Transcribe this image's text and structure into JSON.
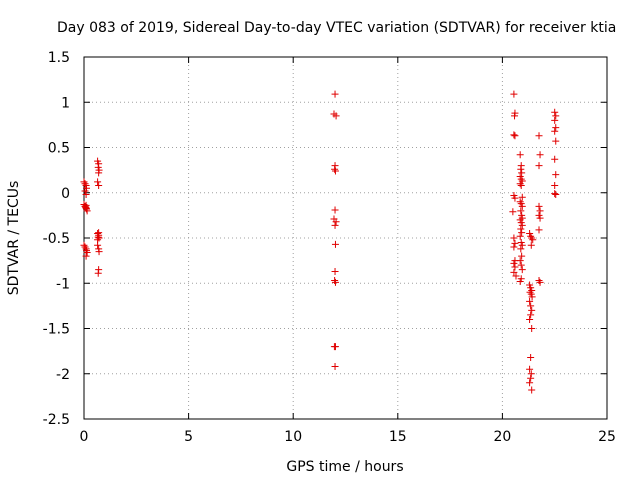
{
  "chart_data": {
    "type": "scatter",
    "title": "Day 083 of 2019, Sidereal Day-to-day VTEC variation (SDTVAR) for receiver ktia",
    "xlabel": "GPS time / hours",
    "ylabel": "SDTVAR / TECUs",
    "xlim": [
      0,
      25
    ],
    "ylim": [
      -2.5,
      1.5
    ],
    "xticks": [
      0,
      5,
      10,
      15,
      20,
      25
    ],
    "xtick_labels": [
      "0",
      "5",
      "10",
      "15",
      "20",
      "25"
    ],
    "yticks": [
      -2.5,
      -2,
      -1.5,
      -1,
      -0.5,
      0,
      0.5,
      1,
      1.5
    ],
    "ytick_labels": [
      "-2.5",
      "-2",
      "-1.5",
      "-1",
      "-0.5",
      "0",
      "0.5",
      "1",
      "1.5"
    ],
    "grid": true,
    "marker": "+",
    "color": "#e00000",
    "series": [
      {
        "name": "SDTVAR",
        "points": [
          [
            0.0,
            0.12
          ],
          [
            0.05,
            0.1
          ],
          [
            0.1,
            0.08
          ],
          [
            0.12,
            0.05
          ],
          [
            0.05,
            0.02
          ],
          [
            0.1,
            -0.02
          ],
          [
            0.0,
            -0.13
          ],
          [
            0.05,
            -0.15
          ],
          [
            0.08,
            -0.16
          ],
          [
            0.1,
            -0.17
          ],
          [
            0.12,
            -0.18
          ],
          [
            0.15,
            -0.2
          ],
          [
            0.1,
            -0.14
          ],
          [
            0.0,
            -0.58
          ],
          [
            0.05,
            -0.6
          ],
          [
            0.1,
            -0.62
          ],
          [
            0.12,
            -0.64
          ],
          [
            0.15,
            -0.66
          ],
          [
            0.1,
            -0.7
          ],
          [
            0.65,
            0.35
          ],
          [
            0.7,
            0.32
          ],
          [
            0.68,
            0.28
          ],
          [
            0.72,
            0.25
          ],
          [
            0.7,
            0.22
          ],
          [
            0.65,
            0.12
          ],
          [
            0.7,
            0.08
          ],
          [
            0.65,
            -0.45
          ],
          [
            0.7,
            -0.47
          ],
          [
            0.68,
            -0.49
          ],
          [
            0.72,
            -0.5
          ],
          [
            0.65,
            -0.52
          ],
          [
            0.7,
            -0.44
          ],
          [
            0.65,
            -0.58
          ],
          [
            0.7,
            -0.62
          ],
          [
            0.72,
            -0.65
          ],
          [
            0.7,
            -0.85
          ],
          [
            0.68,
            -0.89
          ],
          [
            12.0,
            1.09
          ],
          [
            11.95,
            0.87
          ],
          [
            12.05,
            0.85
          ],
          [
            12.0,
            0.3
          ],
          [
            11.98,
            0.26
          ],
          [
            12.02,
            0.24
          ],
          [
            12.0,
            -0.19
          ],
          [
            11.95,
            -0.29
          ],
          [
            12.05,
            -0.32
          ],
          [
            12.0,
            -0.36
          ],
          [
            12.02,
            -0.57
          ],
          [
            12.0,
            -0.87
          ],
          [
            11.98,
            -0.97
          ],
          [
            12.02,
            -0.99
          ],
          [
            11.97,
            -1.7
          ],
          [
            12.02,
            -1.7
          ],
          [
            12.0,
            -1.92
          ],
          [
            20.55,
            1.09
          ],
          [
            20.6,
            0.88
          ],
          [
            20.58,
            0.85
          ],
          [
            20.55,
            0.64
          ],
          [
            20.6,
            0.63
          ],
          [
            20.55,
            -0.03
          ],
          [
            20.6,
            -0.06
          ],
          [
            20.5,
            -0.21
          ],
          [
            20.55,
            -0.5
          ],
          [
            20.6,
            -0.56
          ],
          [
            20.55,
            -0.6
          ],
          [
            20.6,
            -0.75
          ],
          [
            20.55,
            -0.78
          ],
          [
            20.6,
            -0.82
          ],
          [
            20.55,
            -0.88
          ],
          [
            20.65,
            -0.92
          ],
          [
            20.85,
            0.42
          ],
          [
            20.9,
            0.3
          ],
          [
            20.88,
            0.26
          ],
          [
            20.92,
            0.22
          ],
          [
            20.85,
            0.18
          ],
          [
            20.9,
            0.15
          ],
          [
            20.95,
            0.13
          ],
          [
            20.85,
            0.1
          ],
          [
            20.9,
            0.08
          ],
          [
            20.95,
            -0.05
          ],
          [
            20.85,
            -0.1
          ],
          [
            20.9,
            -0.12
          ],
          [
            20.95,
            -0.15
          ],
          [
            20.88,
            -0.2
          ],
          [
            20.92,
            -0.25
          ],
          [
            20.95,
            -0.28
          ],
          [
            20.85,
            -0.3
          ],
          [
            20.9,
            -0.33
          ],
          [
            20.95,
            -0.36
          ],
          [
            20.88,
            -0.4
          ],
          [
            20.92,
            -0.44
          ],
          [
            20.85,
            -0.48
          ],
          [
            20.9,
            -0.55
          ],
          [
            20.95,
            -0.58
          ],
          [
            20.88,
            -0.62
          ],
          [
            20.92,
            -0.7
          ],
          [
            20.85,
            -0.75
          ],
          [
            20.9,
            -0.8
          ],
          [
            20.95,
            -0.85
          ],
          [
            20.9,
            -0.95
          ],
          [
            20.85,
            -0.98
          ],
          [
            21.3,
            -0.45
          ],
          [
            21.35,
            -0.48
          ],
          [
            21.4,
            -0.5
          ],
          [
            21.45,
            -0.52
          ],
          [
            21.38,
            -0.58
          ],
          [
            21.3,
            -1.02
          ],
          [
            21.35,
            -1.05
          ],
          [
            21.4,
            -1.08
          ],
          [
            21.32,
            -1.1
          ],
          [
            21.38,
            -1.12
          ],
          [
            21.42,
            -1.15
          ],
          [
            21.3,
            -1.2
          ],
          [
            21.35,
            -1.25
          ],
          [
            21.4,
            -1.3
          ],
          [
            21.35,
            -1.35
          ],
          [
            21.3,
            -1.4
          ],
          [
            21.4,
            -1.5
          ],
          [
            21.35,
            -1.82
          ],
          [
            21.3,
            -1.95
          ],
          [
            21.38,
            -2.0
          ],
          [
            21.35,
            -2.05
          ],
          [
            21.3,
            -2.1
          ],
          [
            21.4,
            -2.18
          ],
          [
            21.75,
            0.63
          ],
          [
            21.8,
            0.42
          ],
          [
            21.75,
            0.3
          ],
          [
            21.75,
            -0.15
          ],
          [
            21.8,
            -0.2
          ],
          [
            21.75,
            -0.25
          ],
          [
            21.8,
            -0.28
          ],
          [
            21.75,
            -0.41
          ],
          [
            21.75,
            -0.97
          ],
          [
            21.8,
            -0.99
          ],
          [
            22.5,
            0.89
          ],
          [
            22.55,
            0.85
          ],
          [
            22.5,
            0.8
          ],
          [
            22.55,
            0.72
          ],
          [
            22.5,
            0.68
          ],
          [
            22.55,
            0.57
          ],
          [
            22.5,
            0.37
          ],
          [
            22.55,
            0.2
          ],
          [
            22.5,
            0.08
          ],
          [
            22.55,
            -0.02
          ],
          [
            22.5,
            -0.01
          ]
        ]
      }
    ]
  }
}
